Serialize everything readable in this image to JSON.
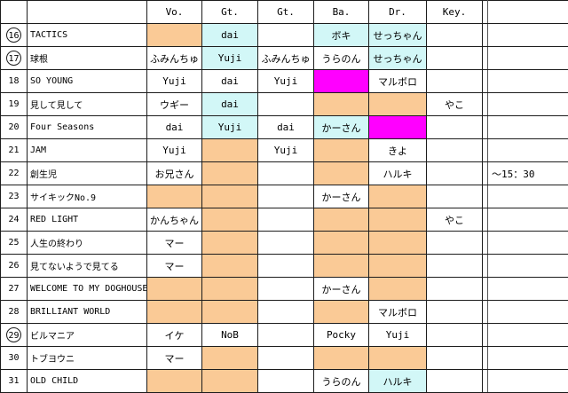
{
  "colors": {
    "orange": "#FACA96",
    "cyan": "#D2F7F7",
    "magenta": "#FF00FF",
    "white": "#FFFFFF",
    "grid": "#1C1C1C"
  },
  "header": {
    "num": "",
    "song": "",
    "vo": "Vo.",
    "gt1": "Gt.",
    "gt2": "Gt.",
    "ba": "Ba.",
    "dr": "Dr.",
    "key": "Key.",
    "divider": "",
    "note": ""
  },
  "rows": [
    {
      "num": "16",
      "circled": true,
      "song": "TACTICS",
      "vo": {
        "text": "",
        "bg": "orange"
      },
      "gt1": {
        "text": "dai",
        "bg": "cyan"
      },
      "gt2": {
        "text": "",
        "bg": "white"
      },
      "ba": {
        "text": "ボキ",
        "bg": "cyan"
      },
      "dr": {
        "text": "せっちゃん",
        "bg": "cyan"
      },
      "key": {
        "text": "",
        "bg": "white"
      },
      "note": ""
    },
    {
      "num": "17",
      "circled": true,
      "song": "球根",
      "vo": {
        "text": "ふみんちゅ",
        "bg": "white"
      },
      "gt1": {
        "text": "Yuji",
        "bg": "cyan"
      },
      "gt2": {
        "text": "ふみんちゅ",
        "bg": "white"
      },
      "ba": {
        "text": "うらのん",
        "bg": "white"
      },
      "dr": {
        "text": "せっちゃん",
        "bg": "cyan"
      },
      "key": {
        "text": "",
        "bg": "white"
      },
      "note": ""
    },
    {
      "num": "18",
      "circled": false,
      "song": "SO YOUNG",
      "vo": {
        "text": "Yuji",
        "bg": "white"
      },
      "gt1": {
        "text": "dai",
        "bg": "white"
      },
      "gt2": {
        "text": "Yuji",
        "bg": "white"
      },
      "ba": {
        "text": "",
        "bg": "magenta"
      },
      "dr": {
        "text": "マルボロ",
        "bg": "white"
      },
      "key": {
        "text": "",
        "bg": "white"
      },
      "note": ""
    },
    {
      "num": "19",
      "circled": false,
      "song": "見して見して",
      "vo": {
        "text": "ウギー",
        "bg": "white"
      },
      "gt1": {
        "text": "dai",
        "bg": "cyan"
      },
      "gt2": {
        "text": "",
        "bg": "white"
      },
      "ba": {
        "text": "",
        "bg": "orange"
      },
      "dr": {
        "text": "",
        "bg": "orange"
      },
      "key": {
        "text": "やこ",
        "bg": "white"
      },
      "note": ""
    },
    {
      "num": "20",
      "circled": false,
      "song": "Four Seasons",
      "vo": {
        "text": "dai",
        "bg": "white"
      },
      "gt1": {
        "text": "Yuji",
        "bg": "cyan"
      },
      "gt2": {
        "text": "dai",
        "bg": "white"
      },
      "ba": {
        "text": "かーさん",
        "bg": "cyan"
      },
      "dr": {
        "text": "",
        "bg": "magenta"
      },
      "key": {
        "text": "",
        "bg": "white"
      },
      "note": ""
    },
    {
      "num": "21",
      "circled": false,
      "song": "JAM",
      "vo": {
        "text": "Yuji",
        "bg": "white"
      },
      "gt1": {
        "text": "",
        "bg": "orange"
      },
      "gt2": {
        "text": "Yuji",
        "bg": "white"
      },
      "ba": {
        "text": "",
        "bg": "orange"
      },
      "dr": {
        "text": "きよ",
        "bg": "white"
      },
      "key": {
        "text": "",
        "bg": "white"
      },
      "note": ""
    },
    {
      "num": "22",
      "circled": false,
      "song": "創生児",
      "vo": {
        "text": "お兄さん",
        "bg": "white"
      },
      "gt1": {
        "text": "",
        "bg": "orange"
      },
      "gt2": {
        "text": "",
        "bg": "white"
      },
      "ba": {
        "text": "",
        "bg": "orange"
      },
      "dr": {
        "text": "ハルキ",
        "bg": "white"
      },
      "key": {
        "text": "",
        "bg": "white"
      },
      "note": "～15：30"
    },
    {
      "num": "23",
      "circled": false,
      "song": "サイキックNo.9",
      "vo": {
        "text": "",
        "bg": "orange"
      },
      "gt1": {
        "text": "",
        "bg": "orange"
      },
      "gt2": {
        "text": "",
        "bg": "white"
      },
      "ba": {
        "text": "かーさん",
        "bg": "white"
      },
      "dr": {
        "text": "",
        "bg": "orange"
      },
      "key": {
        "text": "",
        "bg": "white"
      },
      "note": ""
    },
    {
      "num": "24",
      "circled": false,
      "song": "RED LIGHT",
      "vo": {
        "text": "かんちゃん",
        "bg": "white"
      },
      "gt1": {
        "text": "",
        "bg": "orange"
      },
      "gt2": {
        "text": "",
        "bg": "white"
      },
      "ba": {
        "text": "",
        "bg": "orange"
      },
      "dr": {
        "text": "",
        "bg": "orange"
      },
      "key": {
        "text": "やこ",
        "bg": "white"
      },
      "note": ""
    },
    {
      "num": "25",
      "circled": false,
      "song": "人生の終わり",
      "vo": {
        "text": "マー",
        "bg": "white"
      },
      "gt1": {
        "text": "",
        "bg": "orange"
      },
      "gt2": {
        "text": "",
        "bg": "white"
      },
      "ba": {
        "text": "",
        "bg": "orange"
      },
      "dr": {
        "text": "",
        "bg": "orange"
      },
      "key": {
        "text": "",
        "bg": "white"
      },
      "note": ""
    },
    {
      "num": "26",
      "circled": false,
      "song": "見てないようで見てる",
      "vo": {
        "text": "マー",
        "bg": "white"
      },
      "gt1": {
        "text": "",
        "bg": "orange"
      },
      "gt2": {
        "text": "",
        "bg": "white"
      },
      "ba": {
        "text": "",
        "bg": "orange"
      },
      "dr": {
        "text": "",
        "bg": "orange"
      },
      "key": {
        "text": "",
        "bg": "white"
      },
      "note": ""
    },
    {
      "num": "27",
      "circled": false,
      "song": "WELCOME TO MY DOGHOUSE",
      "vo": {
        "text": "",
        "bg": "orange"
      },
      "gt1": {
        "text": "",
        "bg": "orange"
      },
      "gt2": {
        "text": "",
        "bg": "white"
      },
      "ba": {
        "text": "かーさん",
        "bg": "white"
      },
      "dr": {
        "text": "",
        "bg": "orange"
      },
      "key": {
        "text": "",
        "bg": "white"
      },
      "note": ""
    },
    {
      "num": "28",
      "circled": false,
      "song": "BRILLIANT WORLD",
      "vo": {
        "text": "",
        "bg": "orange"
      },
      "gt1": {
        "text": "",
        "bg": "orange"
      },
      "gt2": {
        "text": "",
        "bg": "white"
      },
      "ba": {
        "text": "",
        "bg": "orange"
      },
      "dr": {
        "text": "マルボロ",
        "bg": "white"
      },
      "key": {
        "text": "",
        "bg": "white"
      },
      "note": ""
    },
    {
      "num": "29",
      "circled": true,
      "song": "ビルマニア",
      "vo": {
        "text": "イケ",
        "bg": "white"
      },
      "gt1": {
        "text": "NoB",
        "bg": "white"
      },
      "gt2": {
        "text": "",
        "bg": "white"
      },
      "ba": {
        "text": "Pocky",
        "bg": "white"
      },
      "dr": {
        "text": "Yuji",
        "bg": "white"
      },
      "key": {
        "text": "",
        "bg": "white"
      },
      "note": ""
    },
    {
      "num": "30",
      "circled": false,
      "song": "トブヨウニ",
      "vo": {
        "text": "マー",
        "bg": "white"
      },
      "gt1": {
        "text": "",
        "bg": "orange"
      },
      "gt2": {
        "text": "",
        "bg": "white"
      },
      "ba": {
        "text": "",
        "bg": "orange"
      },
      "dr": {
        "text": "",
        "bg": "orange"
      },
      "key": {
        "text": "",
        "bg": "white"
      },
      "note": ""
    },
    {
      "num": "31",
      "circled": false,
      "song": "OLD CHILD",
      "vo": {
        "text": "",
        "bg": "orange"
      },
      "gt1": {
        "text": "",
        "bg": "orange"
      },
      "gt2": {
        "text": "",
        "bg": "white"
      },
      "ba": {
        "text": "うらのん",
        "bg": "white"
      },
      "dr": {
        "text": "ハルキ",
        "bg": "cyan"
      },
      "key": {
        "text": "",
        "bg": "white"
      },
      "note": ""
    }
  ]
}
